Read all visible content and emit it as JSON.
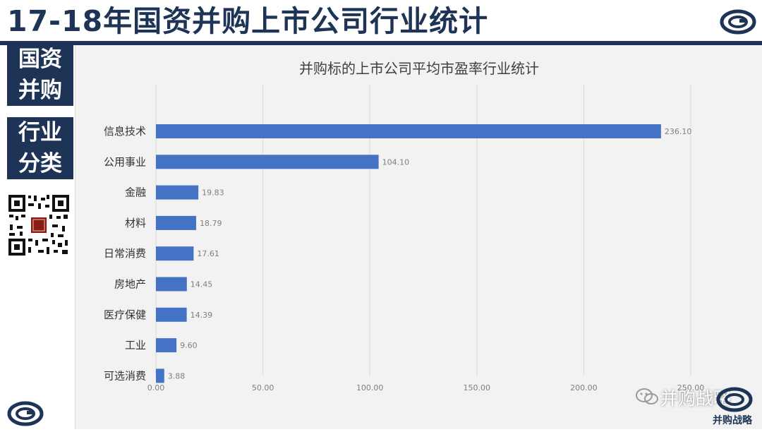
{
  "header": {
    "title": "17-18年国资并购上市公司行业统计"
  },
  "sidebar": {
    "block1": [
      "国资",
      "并购"
    ],
    "block2": [
      "行业",
      "分类"
    ]
  },
  "watermark": {
    "text": "并购战略",
    "caption": "并购战略"
  },
  "colors": {
    "brand": "#1e3457",
    "bar": "#4472c4",
    "panel": "#f2f2f2"
  },
  "chart_data": {
    "type": "bar",
    "orientation": "horizontal",
    "title": "并购标的上市公司平均市盈率行业统计",
    "categories": [
      "信息技术",
      "公用事业",
      "金融",
      "材料",
      "日常消费",
      "房地产",
      "医疗保健",
      "工业",
      "可选消费"
    ],
    "values": [
      236.1,
      104.1,
      19.83,
      18.79,
      17.61,
      14.45,
      14.39,
      9.6,
      3.88
    ],
    "value_labels": [
      "236.10",
      "104.10",
      "19.83",
      "18.79",
      "17.61",
      "14.45",
      "14.39",
      "9.60",
      "3.88"
    ],
    "x_ticks": [
      0,
      50,
      100,
      150,
      200,
      250
    ],
    "x_tick_labels": [
      "0.00",
      "50.00",
      "100.00",
      "150.00",
      "200.00",
      "250.00"
    ],
    "xlim": [
      0,
      250
    ],
    "grid": "vertical"
  }
}
